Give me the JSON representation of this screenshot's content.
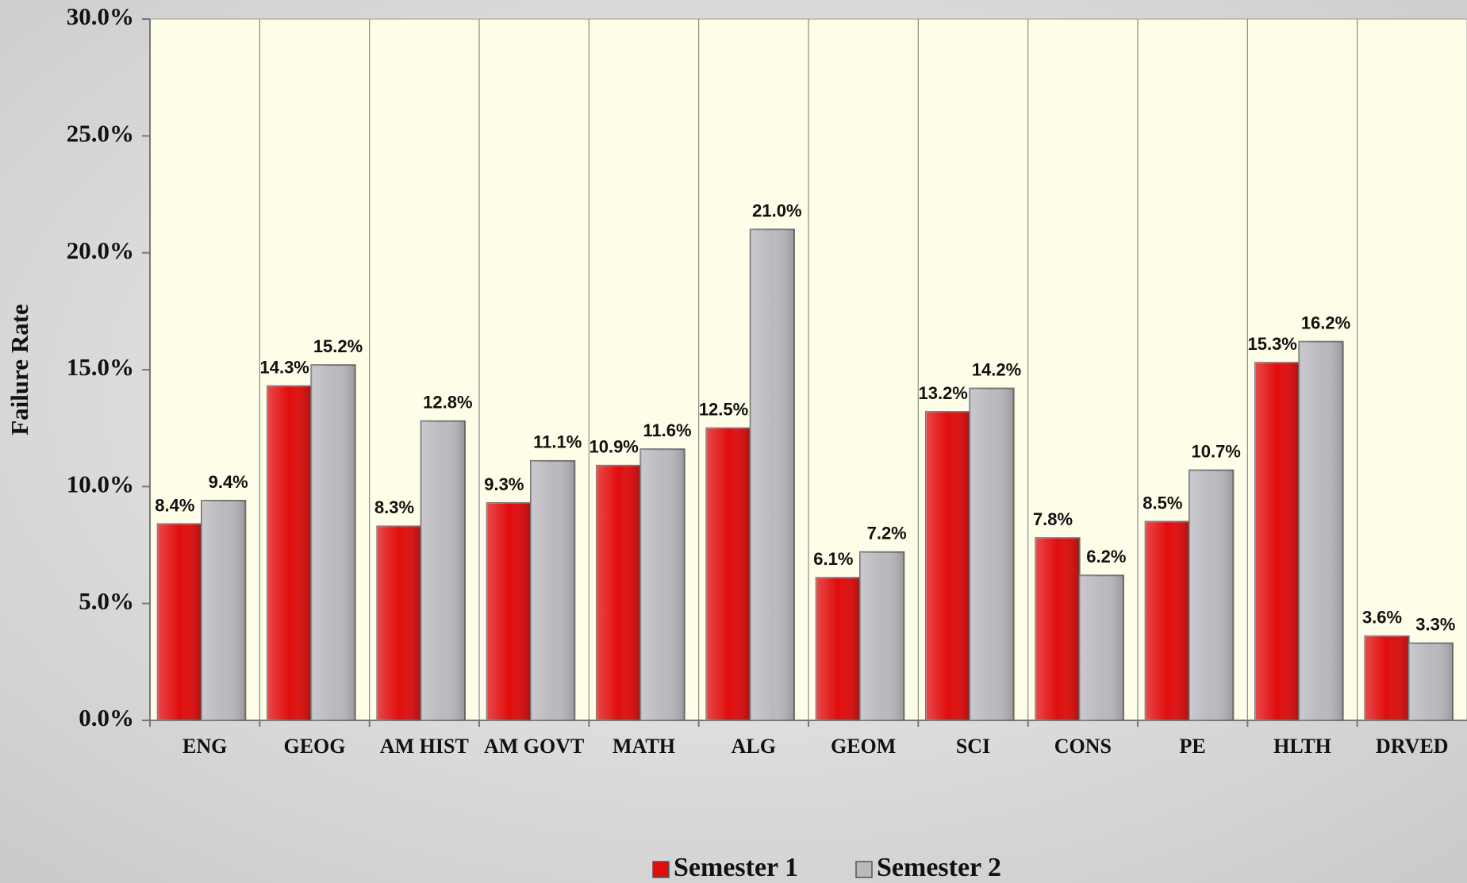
{
  "chart_data": {
    "type": "bar",
    "y_label": "Failure Rate",
    "categories": [
      "ENG",
      "GEOG",
      "AM HIST",
      "AM GOVT",
      "MATH",
      "ALG",
      "GEOM",
      "SCI",
      "CONS",
      "PE",
      "HLTH",
      "DRVED"
    ],
    "series": [
      {
        "name": "Semester 1",
        "color": "#e00d0d",
        "values": [
          8.4,
          14.3,
          8.3,
          9.3,
          10.9,
          12.5,
          6.1,
          13.2,
          7.8,
          8.5,
          15.3,
          3.6
        ],
        "value_labels": [
          "8.4%",
          "14.3%",
          "8.3%",
          "9.3%",
          "10.9%",
          "12.5%",
          "6.1%",
          "13.2%",
          "7.8%",
          "8.5%",
          "15.3%",
          "3.6%"
        ]
      },
      {
        "name": "Semester 2",
        "color": "#b9b9be",
        "values": [
          9.4,
          15.2,
          12.8,
          11.1,
          11.6,
          21.0,
          7.2,
          14.2,
          6.2,
          10.7,
          16.2,
          3.3
        ],
        "value_labels": [
          "9.4%",
          "15.2%",
          "12.8%",
          "11.1%",
          "11.6%",
          "21.0%",
          "7.2%",
          "14.2%",
          "6.2%",
          "10.7%",
          "16.2%",
          "3.3%"
        ]
      }
    ],
    "ylim": [
      0,
      30
    ],
    "yticks": [
      {
        "value": 0,
        "label": "0.0%"
      },
      {
        "value": 5,
        "label": "5.0%"
      },
      {
        "value": 10,
        "label": "10.0%"
      },
      {
        "value": 15,
        "label": "15.0%"
      },
      {
        "value": 20,
        "label": "20.0%"
      },
      {
        "value": 25,
        "label": "25.0%"
      },
      {
        "value": 30,
        "label": "30.0%"
      }
    ],
    "grid": false,
    "legend": "bottom"
  }
}
